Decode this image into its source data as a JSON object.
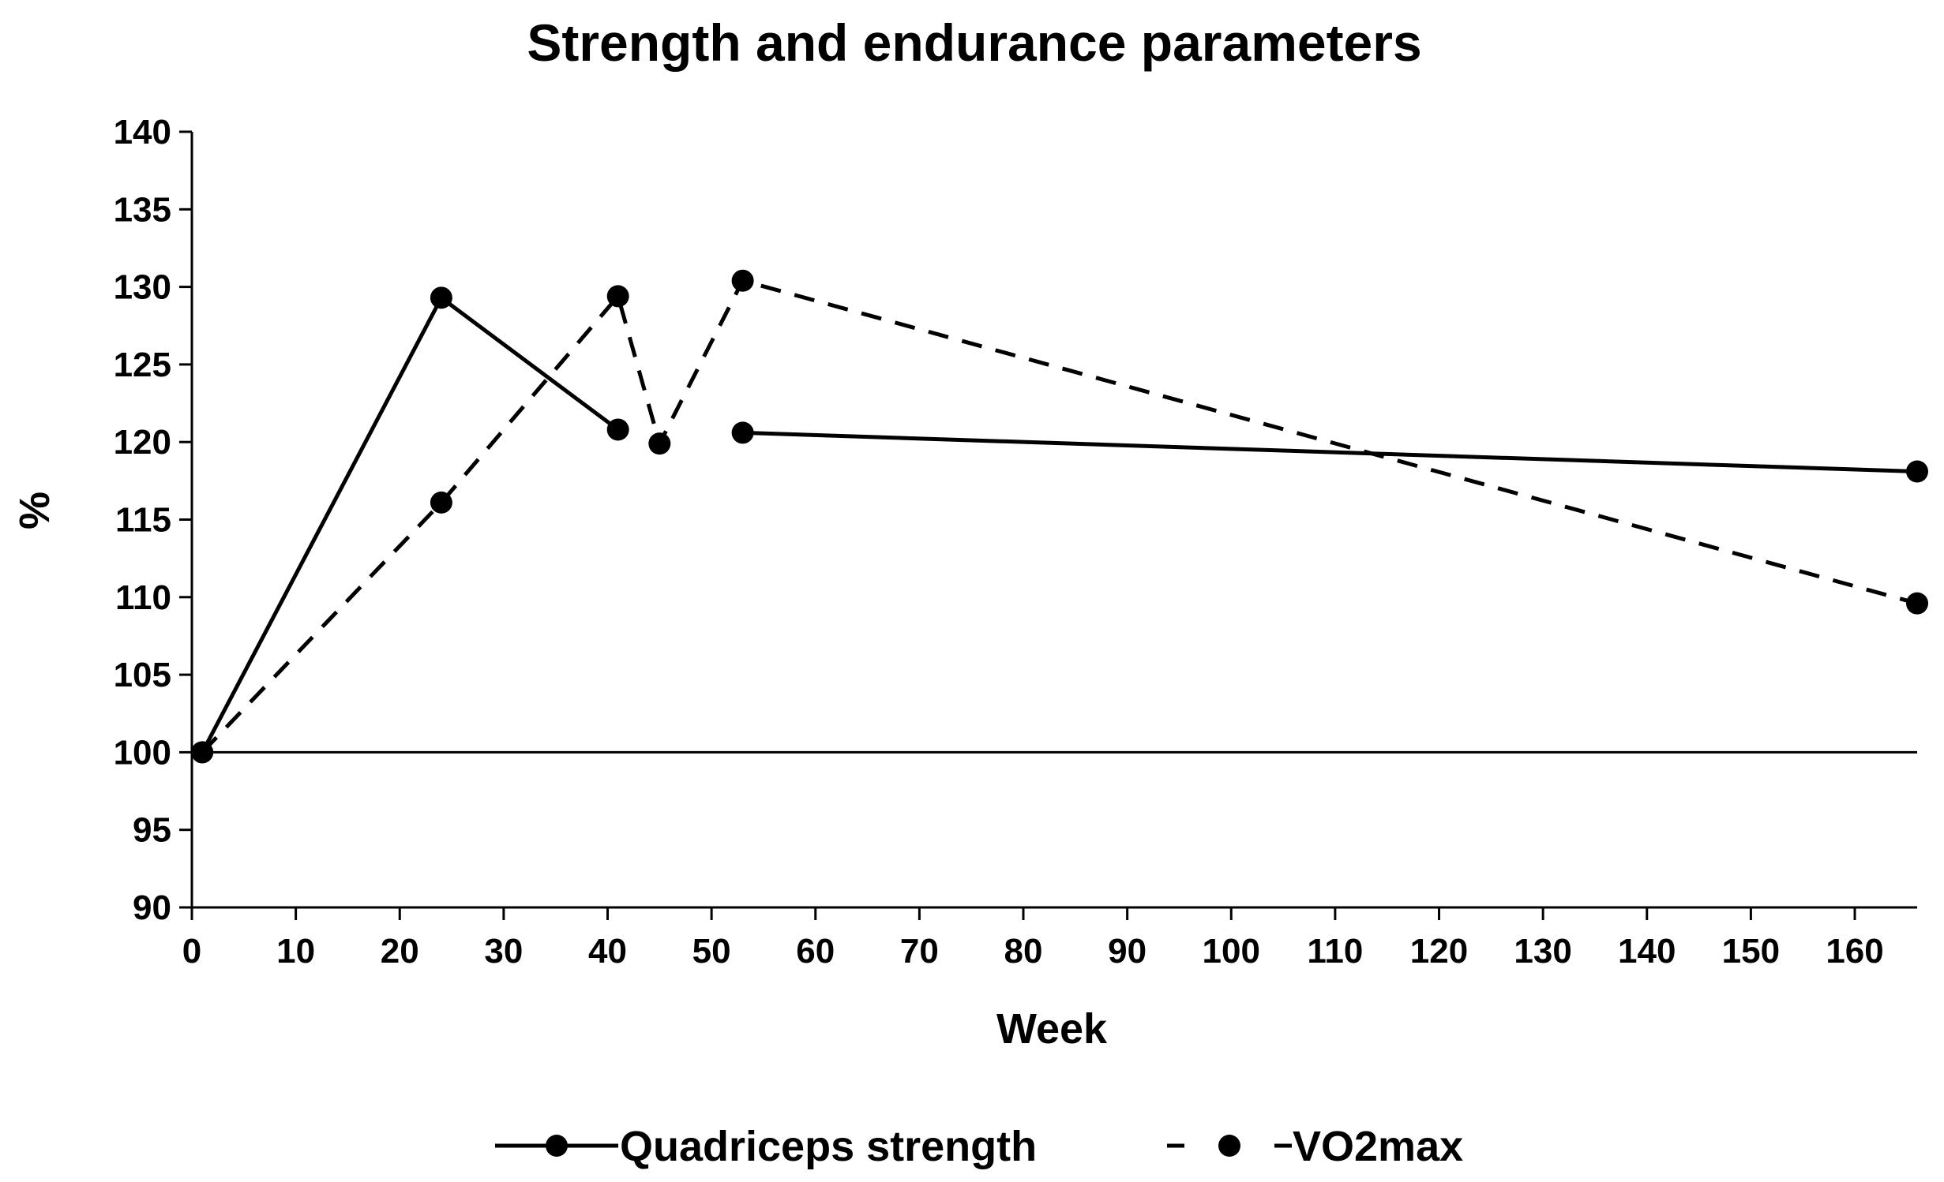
{
  "chart_data": {
    "type": "line",
    "title": "Strength and endurance parameters",
    "xlabel": "Week",
    "ylabel": "%",
    "xlim": [
      0,
      166
    ],
    "ylim": [
      90,
      140
    ],
    "x_ticks": [
      0,
      10,
      20,
      30,
      40,
      50,
      60,
      70,
      80,
      90,
      100,
      110,
      120,
      130,
      140,
      150,
      160
    ],
    "y_ticks": [
      90,
      95,
      100,
      105,
      110,
      115,
      120,
      125,
      130,
      135,
      140
    ],
    "reference_line": {
      "y": 100
    },
    "grid": false,
    "legend_position": "bottom",
    "series": [
      {
        "name": "Quadriceps strength",
        "style": "solid",
        "color": "#000000",
        "segments": [
          [
            {
              "x": 1,
              "y": 100
            },
            {
              "x": 24,
              "y": 129.3
            },
            {
              "x": 41,
              "y": 120.8
            }
          ],
          [
            {
              "x": 53,
              "y": 120.6
            },
            {
              "x": 166,
              "y": 118.1
            }
          ]
        ]
      },
      {
        "name": "VO2max",
        "style": "dashed",
        "color": "#000000",
        "segments": [
          [
            {
              "x": 1,
              "y": 100
            },
            {
              "x": 24,
              "y": 116.1
            },
            {
              "x": 41,
              "y": 129.4
            },
            {
              "x": 45,
              "y": 119.9
            },
            {
              "x": 53,
              "y": 130.4
            },
            {
              "x": 166,
              "y": 109.6
            }
          ]
        ]
      }
    ]
  }
}
